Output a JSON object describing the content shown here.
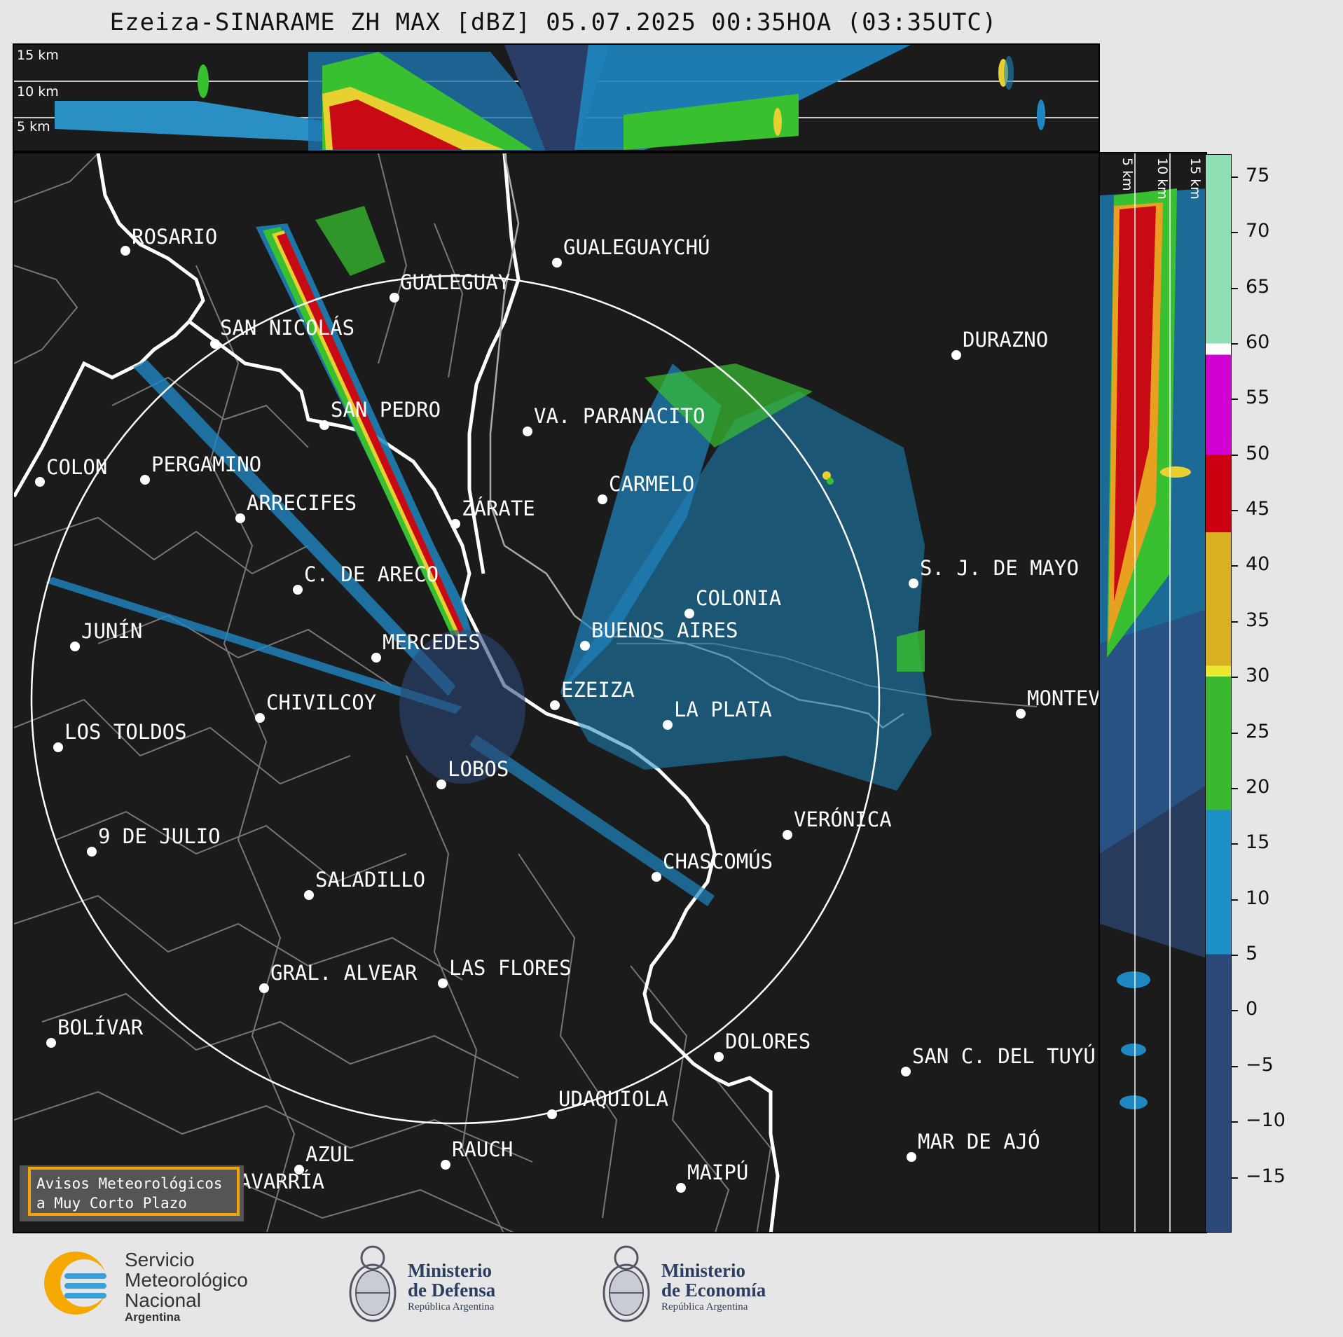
{
  "title": "Ezeiza-SINARAME ZH MAX [dBZ] 05.07.2025 00:35HOA (03:35UTC)",
  "top_panel": {
    "labels": [
      "15 km",
      "10 km",
      "5 km"
    ]
  },
  "side_panel": {
    "labels": [
      "5 km",
      "10 km",
      "15 km"
    ]
  },
  "cities": [
    {
      "name": "ROSARIO",
      "label": "ROSARIO"
    },
    {
      "name": "GUALEGUAYCHU",
      "label": "GUALEGUAYCHÚ"
    },
    {
      "name": "GUALEGUAY",
      "label": "GUALEGUAY"
    },
    {
      "name": "SAN-NICOLAS",
      "label": "SAN NICOLÁS"
    },
    {
      "name": "DURAZNO",
      "label": "DURAZNO"
    },
    {
      "name": "SAN-PEDRO",
      "label": "SAN PEDRO"
    },
    {
      "name": "VA-PARANACITO",
      "label": "VA. PARANACITO"
    },
    {
      "name": "COLON",
      "label": "COLON"
    },
    {
      "name": "PERGAMINO",
      "label": "PERGAMINO"
    },
    {
      "name": "CARMELO",
      "label": "CARMELO"
    },
    {
      "name": "ARRECIFES",
      "label": "ARRECIFES"
    },
    {
      "name": "ZARATE",
      "label": "ZÁRATE"
    },
    {
      "name": "S-J-DE-MAYO",
      "label": "S. J. DE MAYO"
    },
    {
      "name": "C-DE-ARECO",
      "label": "C. DE ARECO"
    },
    {
      "name": "COLONIA",
      "label": "COLONIA"
    },
    {
      "name": "JUNIN",
      "label": "JUNÍN"
    },
    {
      "name": "BUENOS-AIRES",
      "label": "BUENOS AIRES"
    },
    {
      "name": "MERCEDES",
      "label": "MERCEDES"
    },
    {
      "name": "MONTEVIDEO",
      "label": "MONTEV"
    },
    {
      "name": "EZEIZA",
      "label": "EZEIZA"
    },
    {
      "name": "CHIVILCOY",
      "label": "CHIVILCOY"
    },
    {
      "name": "LA-PLATA",
      "label": "LA PLATA"
    },
    {
      "name": "LOS-TOLDOS",
      "label": "LOS TOLDOS"
    },
    {
      "name": "LOBOS",
      "label": "LOBOS"
    },
    {
      "name": "VERONICA",
      "label": "VERÓNICA"
    },
    {
      "name": "9-DE-JULIO",
      "label": "9 DE JULIO"
    },
    {
      "name": "CHASCOMUS",
      "label": "CHASCOMÚS"
    },
    {
      "name": "SALADILLO",
      "label": "SALADILLO"
    },
    {
      "name": "GRAL-ALVEAR",
      "label": "GRAL. ALVEAR"
    },
    {
      "name": "LAS-FLORES",
      "label": "LAS FLORES"
    },
    {
      "name": "BOLIVAR",
      "label": "BOLÍVAR"
    },
    {
      "name": "DOLORES",
      "label": "DOLORES"
    },
    {
      "name": "SAN-C-DEL-TUYU",
      "label": "SAN C. DEL TUYÚ"
    },
    {
      "name": "UDAQUIOLA",
      "label": "UDAQUIOLA"
    },
    {
      "name": "MAR-DE-AJO",
      "label": "MAR DE AJÓ"
    },
    {
      "name": "AZUL",
      "label": "AZUL"
    },
    {
      "name": "RAUCH",
      "label": "RAUCH"
    },
    {
      "name": "MAIPU",
      "label": "MAIPÚ"
    },
    {
      "name": "OLAVARRIA",
      "label": "OLAVARRÍA"
    }
  ],
  "colorbar": {
    "ticks": [
      "75",
      "70",
      "65",
      "60",
      "55",
      "50",
      "45",
      "40",
      "35",
      "30",
      "25",
      "20",
      "15",
      "10",
      "5",
      "0",
      "−5",
      "−10",
      "−15"
    ],
    "range_dbz": [
      -20,
      77
    ],
    "stops": [
      {
        "from": 60,
        "to": 77,
        "color": "#8ee0b4"
      },
      {
        "from": 59,
        "to": 60,
        "color": "#ffffff"
      },
      {
        "from": 50,
        "to": 59,
        "color": "#d000d0"
      },
      {
        "from": 43,
        "to": 50,
        "color": "#cc0010"
      },
      {
        "from": 31,
        "to": 43,
        "color": "#d8b020"
      },
      {
        "from": 30,
        "to": 31,
        "color": "#e8e830"
      },
      {
        "from": 18,
        "to": 30,
        "color": "#3ab830"
      },
      {
        "from": 5,
        "to": 18,
        "color": "#1e90c8"
      },
      {
        "from": -20,
        "to": 5,
        "color": "#2c4878"
      }
    ]
  },
  "warning_box": {
    "line1": "Avisos Meteorológicos",
    "line2": "a Muy Corto Plazo"
  },
  "footer": {
    "smn_line1": "Servicio",
    "smn_line2": "Meteorológico",
    "smn_line3": "Nacional",
    "smn_line4": "Argentina",
    "defensa_line1": "Ministerio",
    "defensa_line2": "de Defensa",
    "defensa_line3": "República Argentina",
    "economia_line1": "Ministerio",
    "economia_line2": "de Economía",
    "economia_line3": "República Argentina"
  }
}
